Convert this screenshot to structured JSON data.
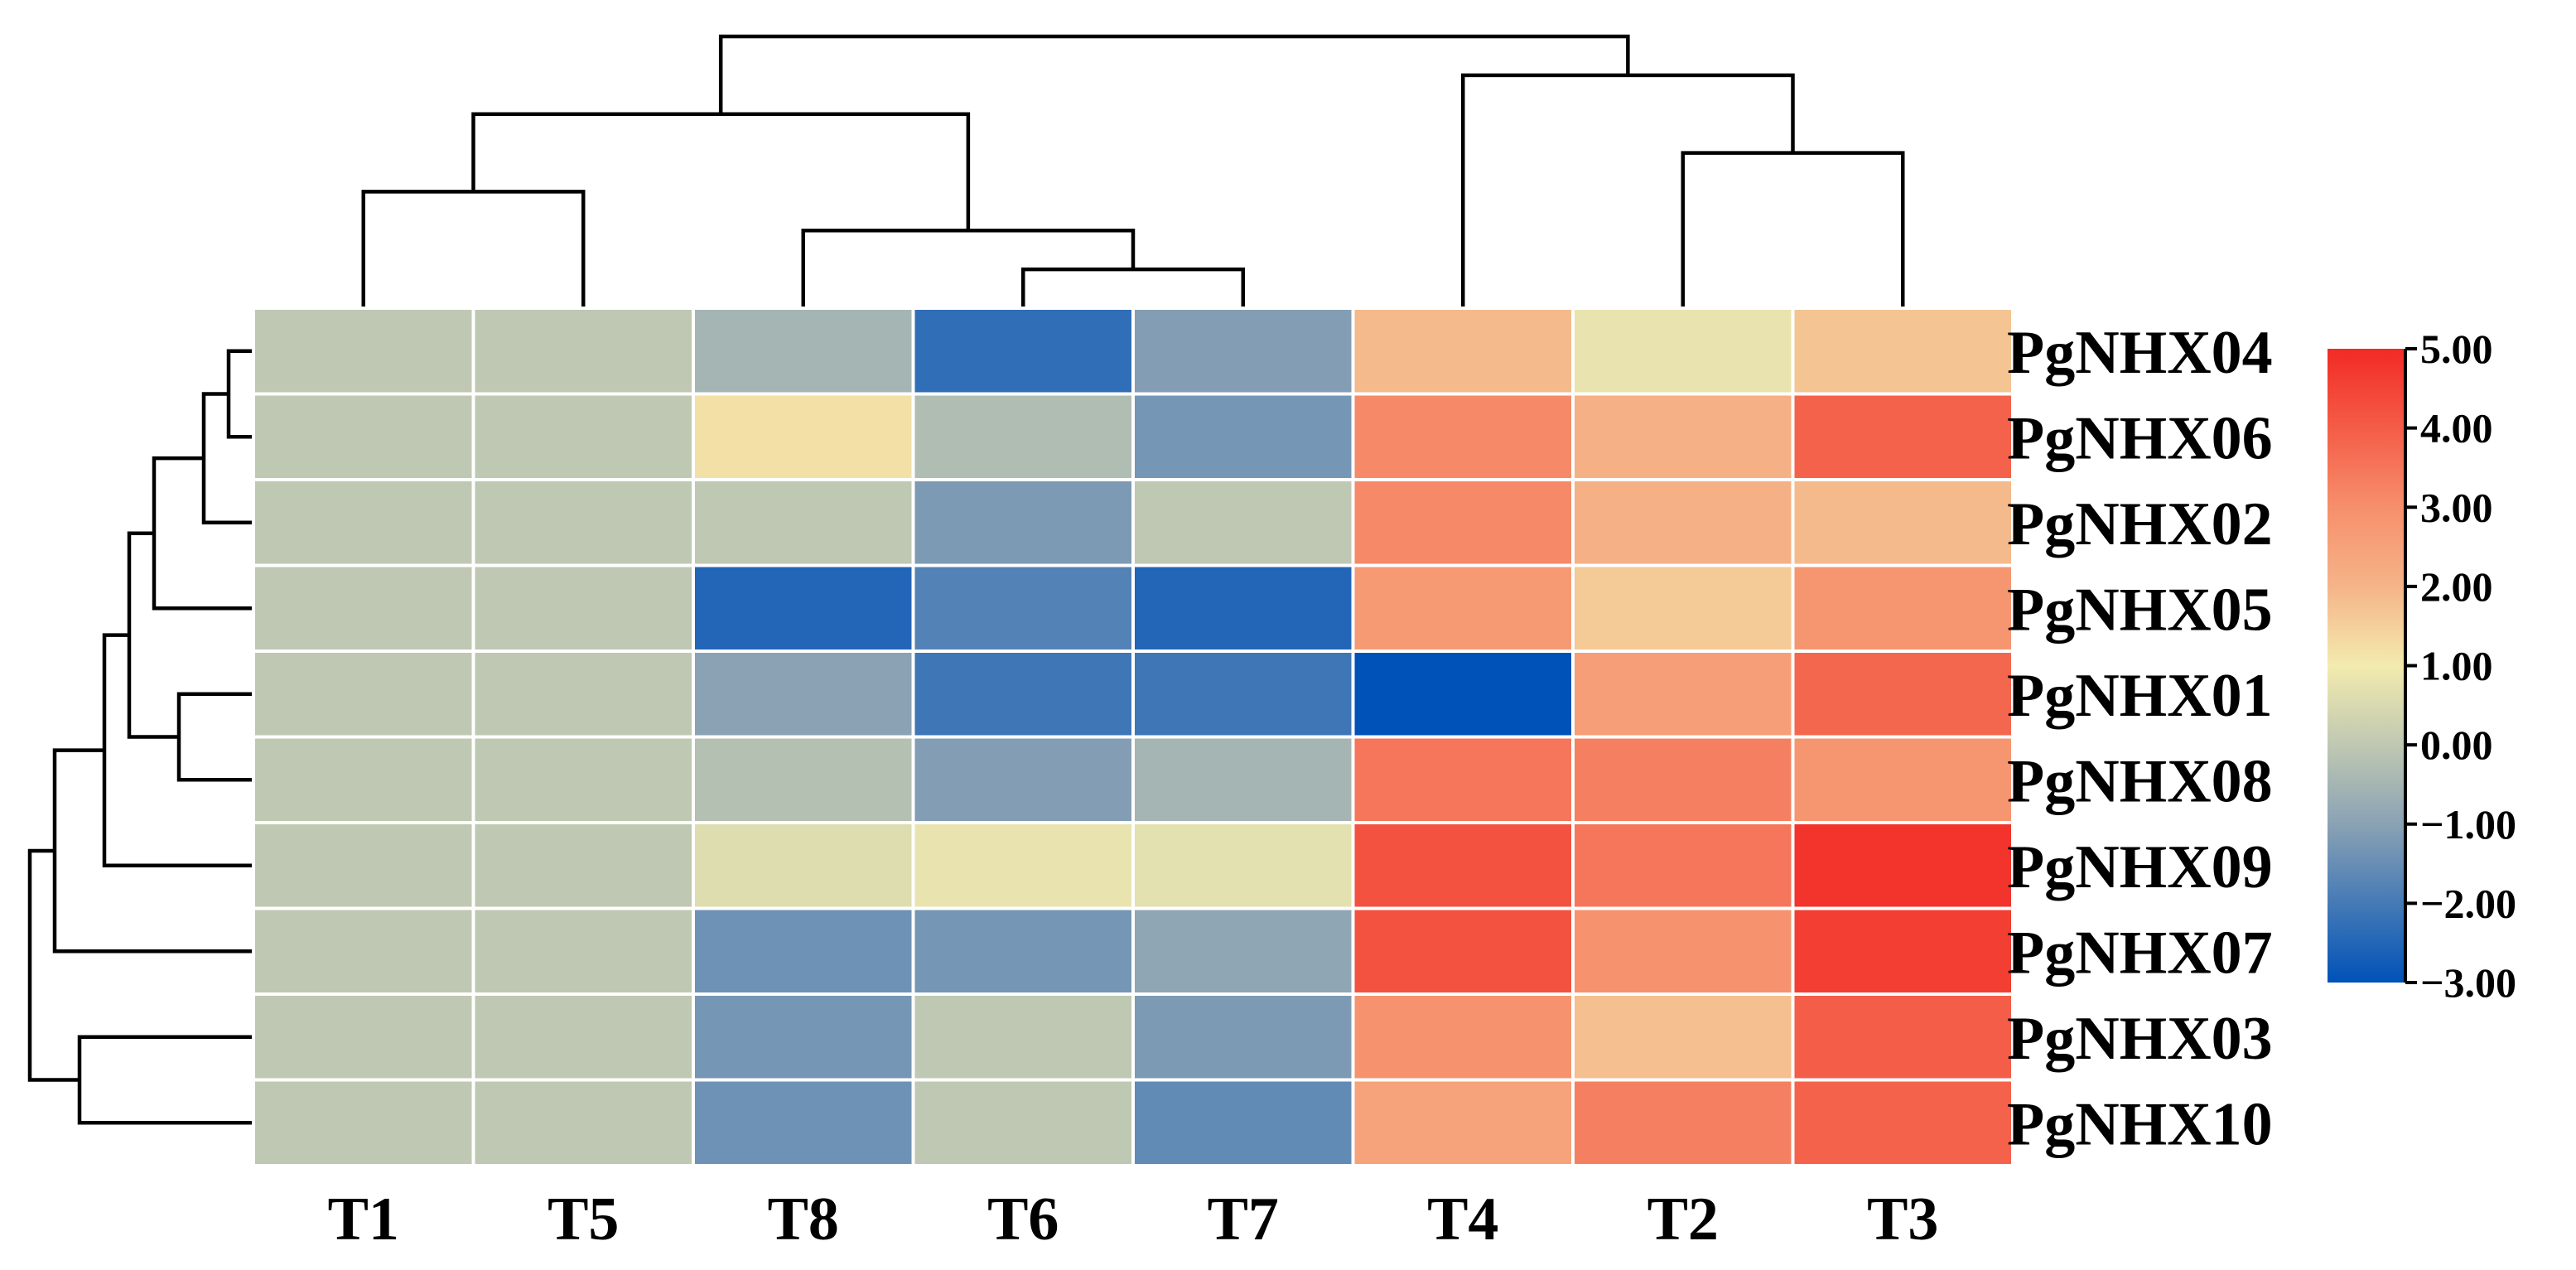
{
  "chart_data": {
    "type": "heatmap",
    "title": "",
    "columns": [
      "T1",
      "T5",
      "T8",
      "T6",
      "T7",
      "T4",
      "T2",
      "T3"
    ],
    "rows": [
      "PgNHX04",
      "PgNHX06",
      "PgNHX02",
      "PgNHX05",
      "PgNHX01",
      "PgNHX08",
      "PgNHX09",
      "PgNHX07",
      "PgNHX03",
      "PgNHX10"
    ],
    "values": [
      [
        0.0,
        0.0,
        -0.5,
        -2.3,
        -1.1,
        1.9,
        0.8,
        1.7
      ],
      [
        0.0,
        0.0,
        1.2,
        -0.3,
        -1.3,
        3.1,
        2.1,
        3.9
      ],
      [
        0.0,
        0.0,
        0.0,
        -1.2,
        0.0,
        3.1,
        2.1,
        1.9
      ],
      [
        0.0,
        0.0,
        -2.5,
        -1.8,
        -2.5,
        2.7,
        1.6,
        2.8
      ],
      [
        0.0,
        0.0,
        -1.0,
        -2.1,
        -2.1,
        -3.0,
        2.6,
        3.8
      ],
      [
        0.0,
        0.0,
        -0.2,
        -1.1,
        -0.5,
        3.5,
        3.3,
        2.8
      ],
      [
        0.0,
        0.0,
        0.6,
        0.8,
        0.7,
        4.2,
        3.5,
        4.8
      ],
      [
        0.0,
        0.0,
        -1.4,
        -1.3,
        -0.9,
        4.2,
        2.9,
        4.6
      ],
      [
        0.0,
        0.0,
        -1.3,
        0.0,
        -1.2,
        2.9,
        1.8,
        4.0
      ],
      [
        0.0,
        0.0,
        -1.4,
        0.0,
        -1.6,
        2.5,
        3.3,
        3.9
      ]
    ],
    "color_scale": {
      "min": -3.0,
      "max": 5.0,
      "stops": [
        {
          "value": -3.0,
          "color": "#0052b8"
        },
        {
          "value": -1.0,
          "color": "#8aa2b4"
        },
        {
          "value": 0.0,
          "color": "#bfc8b2"
        },
        {
          "value": 1.0,
          "color": "#f3ebae"
        },
        {
          "value": 2.0,
          "color": "#f5b488"
        },
        {
          "value": 3.0,
          "color": "#f68f6b"
        },
        {
          "value": 5.0,
          "color": "#f22a25"
        }
      ]
    },
    "colorbar_ticks": [
      "5.00",
      "4.00",
      "3.00",
      "2.00",
      "1.00",
      "0.00",
      "−1.00",
      "−2.00",
      "−3.00"
    ],
    "colorbar_tick_values": [
      5,
      4,
      3,
      2,
      1,
      0,
      -1,
      -2,
      -3
    ],
    "column_dendrogram": [
      [
        3,
        4
      ],
      [
        2,
        8
      ],
      [
        0,
        1
      ],
      [
        6,
        7
      ],
      [
        9,
        10
      ],
      [
        5,
        11
      ],
      [
        12,
        13
      ]
    ],
    "row_dendrogram": [
      [
        0,
        1
      ],
      [
        10,
        2
      ],
      [
        4,
        5
      ],
      [
        11,
        3
      ],
      [
        13,
        12
      ],
      [
        14,
        6
      ],
      [
        8,
        9
      ],
      [
        15,
        7
      ],
      [
        17,
        16
      ]
    ]
  }
}
